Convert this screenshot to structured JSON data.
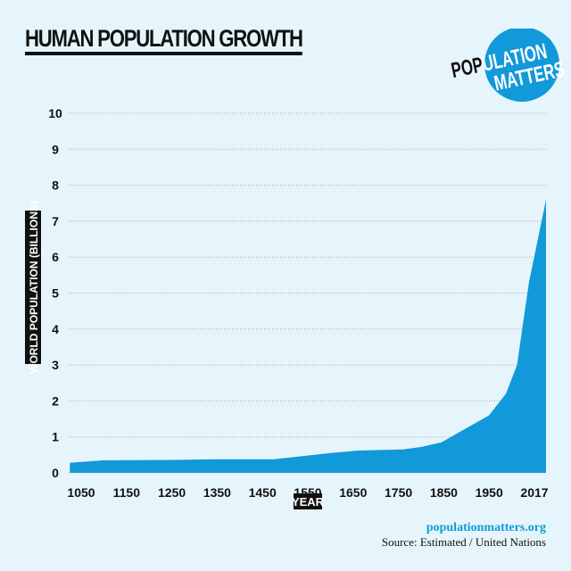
{
  "title": "HUMAN POPULATION GROWTH",
  "logo": {
    "line1": "POPULATION",
    "line2": "MATTERS",
    "color": "#1199d9"
  },
  "footer": {
    "website": "populationmatters.org",
    "source": "Source: Estimated / United Nations"
  },
  "chart_data": {
    "type": "area",
    "title": "HUMAN POPULATION GROWTH",
    "xlabel": "YEAR",
    "ylabel": "WORLD POPULATION (BILLIONS)",
    "ylim": [
      0,
      10
    ],
    "yticks": [
      0,
      1,
      2,
      3,
      4,
      5,
      6,
      7,
      8,
      9,
      10
    ],
    "xticks": [
      "1050",
      "1150",
      "1250",
      "1350",
      "1450",
      "1550",
      "1650",
      "1750",
      "1850",
      "1950",
      "2017"
    ],
    "grid": "horizontal dotted",
    "fill_color": "#1199d9",
    "background": "#e6f5fc",
    "x": [
      1025,
      1100,
      1250,
      1350,
      1475,
      1600,
      1660,
      1760,
      1800,
      1845,
      1950,
      1960,
      1970,
      1983,
      1997,
      2017
    ],
    "y": [
      0.28,
      0.35,
      0.36,
      0.38,
      0.38,
      0.55,
      0.62,
      0.65,
      0.72,
      0.85,
      1.6,
      1.9,
      2.2,
      3.0,
      5.3,
      7.6
    ]
  }
}
